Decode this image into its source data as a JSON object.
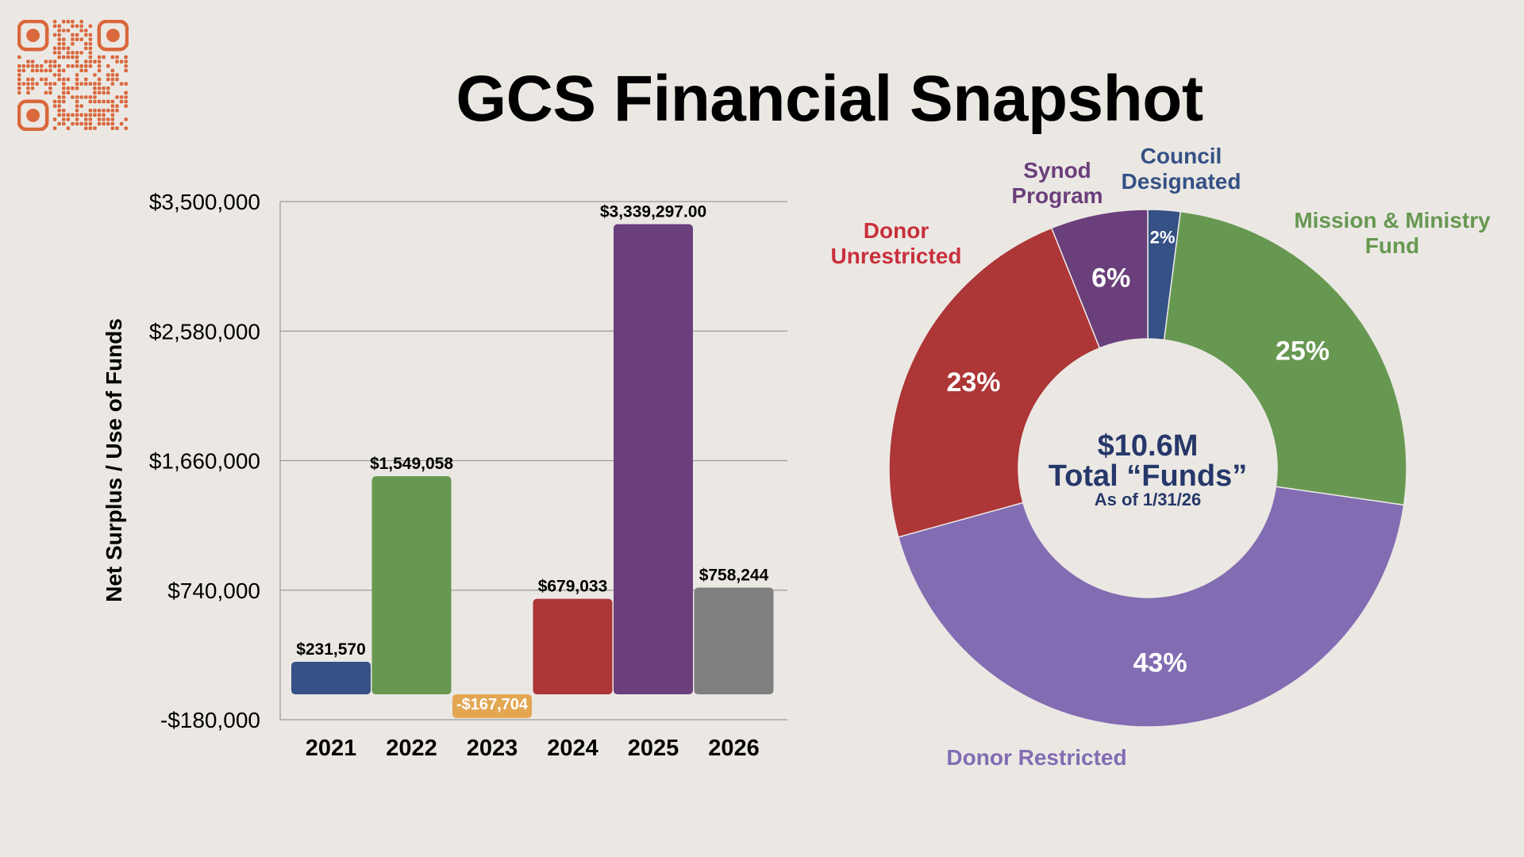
{
  "title": "GCS Financial Snapshot",
  "colors": {
    "background": "#ebe8e4",
    "qr": "#d9683c",
    "grid": "#9a9a9a"
  },
  "chart_data": [
    {
      "type": "bar",
      "ylabel": "Net Surplus / Use of Funds",
      "ylim": [
        -180000,
        3500000
      ],
      "yticks": [
        "$3,500,000",
        "$2,580,000",
        "$1,660,000",
        "$740,000",
        "-$180,000"
      ],
      "ytick_values": [
        3500000,
        2580000,
        1660000,
        740000,
        -180000
      ],
      "grid": true,
      "categories": [
        "2021",
        "2022",
        "2023",
        "2024",
        "2025",
        "2026"
      ],
      "values": [
        231570,
        1549058,
        -167704,
        679033,
        3339297.0,
        758244
      ],
      "data_labels": [
        "$231,570",
        "$1,549,058",
        "-$167,704",
        "$679,033",
        "$3,339,297.00",
        "$758,244"
      ],
      "colors": [
        "#355185",
        "#679851",
        "#e3a651",
        "#ad3636",
        "#6a3f7b",
        "#7f7f7f"
      ]
    },
    {
      "type": "pie",
      "donut": true,
      "center_text": {
        "value": "$10.6M",
        "label": "Total “Funds”",
        "date": "As of 1/31/26"
      },
      "slices": [
        {
          "name": "Council Designated",
          "percent": 2,
          "label": "2%",
          "color": "#355185"
        },
        {
          "name": "Mission & Ministry Fund",
          "percent": 25,
          "label": "25%",
          "color": "#679851"
        },
        {
          "name": "Donor Restricted",
          "percent": 43,
          "label": "43%",
          "color": "#826cb2"
        },
        {
          "name": "Donor Unrestricted",
          "percent": 23,
          "label": "23%",
          "color": "#ad3636"
        },
        {
          "name": "Synod Program",
          "percent": 6,
          "label": "6%",
          "color": "#6a3f7b"
        }
      ],
      "category_labels": [
        {
          "lines": [
            "Council",
            "Designated"
          ],
          "color": "#355185"
        },
        {
          "lines": [
            "Mission & Ministry",
            "Fund"
          ],
          "color": "#679851"
        },
        {
          "lines": [
            "Donor Restricted"
          ],
          "color": "#826cb2"
        },
        {
          "lines": [
            "Donor",
            "Unrestricted"
          ],
          "color": "#c8303c"
        },
        {
          "lines": [
            "Synod",
            "Program"
          ],
          "color": "#6a3f7b"
        }
      ]
    }
  ]
}
